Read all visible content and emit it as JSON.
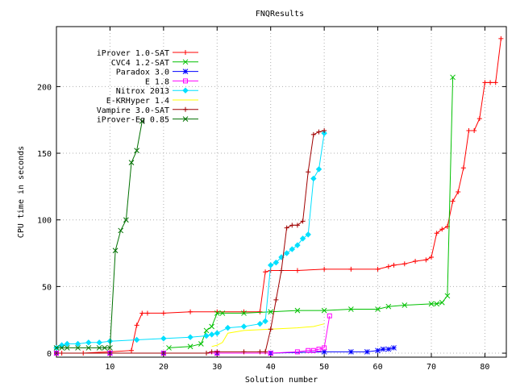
{
  "chart_data": {
    "type": "line",
    "title": "FNQResults",
    "xlabel": "Solution number",
    "ylabel": "CPU time in seconds",
    "xlim": [
      0,
      84
    ],
    "ylim": [
      -3,
      245
    ],
    "xticks": [
      10,
      20,
      30,
      40,
      50,
      60,
      70,
      80
    ],
    "yticks": [
      0,
      50,
      100,
      150,
      200
    ],
    "grid": true,
    "legend_position": "top-left",
    "series": [
      {
        "name": "iProver 1.0-SAT",
        "color": "#ff0000",
        "marker": "plus",
        "x": [
          1,
          5,
          10,
          14,
          15,
          16,
          17,
          20,
          25,
          30,
          35,
          38,
          39,
          40,
          42,
          45,
          50,
          55,
          60,
          62,
          63,
          65,
          67,
          69,
          70,
          71,
          72,
          73,
          74,
          75,
          76,
          77,
          78,
          79,
          80,
          81,
          82,
          83
        ],
        "y": [
          0,
          0,
          1,
          2,
          21,
          30,
          30,
          30,
          31,
          31,
          31,
          31,
          61,
          62,
          62,
          62,
          63,
          63,
          63,
          65,
          66,
          67,
          69,
          70,
          72,
          90,
          93,
          95,
          114,
          121,
          139,
          167,
          167,
          176,
          203,
          203,
          203,
          236
        ]
      },
      {
        "name": "CVC4 1.2-SAT",
        "color": "#00c000",
        "marker": "x",
        "x": [
          21,
          25,
          27,
          28,
          29,
          30,
          31,
          35,
          40,
          45,
          50,
          55,
          60,
          62,
          65,
          70,
          71,
          72,
          73,
          74
        ],
        "y": [
          4,
          5,
          7,
          17,
          20,
          30,
          30,
          30,
          31,
          32,
          32,
          33,
          33,
          35,
          36,
          37,
          37,
          38,
          43,
          207
        ]
      },
      {
        "name": "Paradox 3.0",
        "color": "#0000ff",
        "marker": "star",
        "x": [
          0,
          10,
          20,
          30,
          40,
          50,
          55,
          58,
          60,
          61,
          62,
          63
        ],
        "y": [
          0,
          0,
          0,
          0,
          0,
          1,
          1,
          1,
          2,
          3,
          3,
          4
        ]
      },
      {
        "name": "E 1.8",
        "color": "#ff00ff",
        "marker": "square",
        "x": [
          0,
          10,
          20,
          30,
          40,
          45,
          47,
          48,
          49,
          50,
          51
        ],
        "y": [
          0,
          0,
          0,
          0,
          0,
          1,
          2,
          2,
          3,
          4,
          28
        ]
      },
      {
        "name": "Nitrox 2013",
        "color": "#00e0ff",
        "marker": "diamond",
        "x": [
          0,
          1,
          2,
          4,
          6,
          8,
          10,
          15,
          20,
          25,
          28,
          29,
          30,
          32,
          35,
          38,
          39,
          40,
          41,
          42,
          43,
          44,
          45,
          46,
          47,
          48,
          49,
          50
        ],
        "y": [
          4,
          6,
          7,
          7,
          8,
          8,
          9,
          10,
          11,
          12,
          13,
          14,
          15,
          19,
          20,
          22,
          24,
          66,
          68,
          72,
          75,
          78,
          81,
          86,
          89,
          131,
          138,
          165
        ]
      },
      {
        "name": "E-KRHyper 1.4",
        "color": "#ffff00",
        "marker": "none",
        "x": [
          29,
          30,
          31,
          32,
          35,
          40,
          45,
          48,
          49,
          50
        ],
        "y": [
          5,
          6,
          8,
          15,
          17,
          18,
          19,
          20,
          21,
          22
        ]
      },
      {
        "name": "Vampire 3.0-SAT",
        "color": "#a00000",
        "marker": "plus",
        "x": [
          0,
          10,
          20,
          28,
          29,
          30,
          35,
          38,
          39,
          40,
          41,
          42,
          43,
          44,
          45,
          46,
          47,
          48,
          49,
          50
        ],
        "y": [
          0,
          0,
          0,
          0,
          1,
          1,
          1,
          1,
          1,
          18,
          40,
          62,
          94,
          96,
          96,
          99,
          136,
          164,
          166,
          167
        ]
      },
      {
        "name": "iProver-Eq 0.85",
        "color": "#007000",
        "marker": "x",
        "x": [
          0,
          1,
          2,
          4,
          6,
          8,
          9,
          10,
          11,
          12,
          13,
          14,
          15,
          16
        ],
        "y": [
          4,
          4,
          4,
          4,
          4,
          4,
          4,
          4,
          77,
          92,
          100,
          143,
          152,
          174
        ]
      }
    ]
  }
}
